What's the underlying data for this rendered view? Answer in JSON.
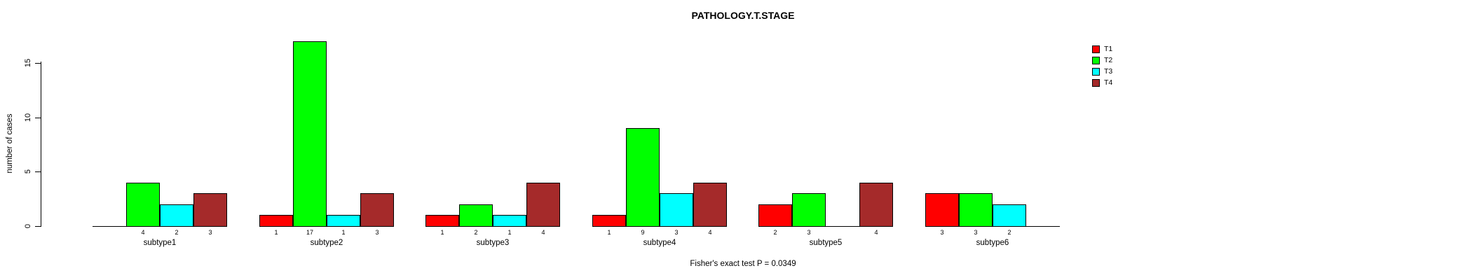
{
  "title": "PATHOLOGY.T.STAGE",
  "footer": "Fisher's exact test P = 0.0349",
  "y_axis": {
    "label": "number of cases",
    "ticks": [
      0,
      5,
      10,
      15
    ]
  },
  "colors": {
    "T1": "#ff0000",
    "T2": "#00ff00",
    "T3": "#00ffff",
    "T4": "#a52a2a",
    "border": "#000000"
  },
  "chart_data": {
    "type": "bar",
    "grouped": true,
    "title": "PATHOLOGY.T.STAGE",
    "xlabel": "",
    "ylabel": "number of cases",
    "ylim": [
      0,
      17
    ],
    "grid": false,
    "legend_position": "top-right",
    "categories": [
      "subtype1",
      "subtype2",
      "subtype3",
      "subtype4",
      "subtype5",
      "subtype6"
    ],
    "series": [
      {
        "name": "T1",
        "color": "#ff0000",
        "values": [
          0,
          1,
          1,
          1,
          2,
          3
        ]
      },
      {
        "name": "T2",
        "color": "#00ff00",
        "values": [
          4,
          17,
          2,
          9,
          3,
          3
        ]
      },
      {
        "name": "T3",
        "color": "#00ffff",
        "values": [
          2,
          1,
          1,
          3,
          0,
          2
        ]
      },
      {
        "name": "T4",
        "color": "#a52a2a",
        "values": [
          3,
          3,
          4,
          4,
          4,
          0
        ]
      }
    ],
    "bar_value_labels_shown_for_nonzero_only": true,
    "annotation": "Fisher's exact test P = 0.0349"
  }
}
